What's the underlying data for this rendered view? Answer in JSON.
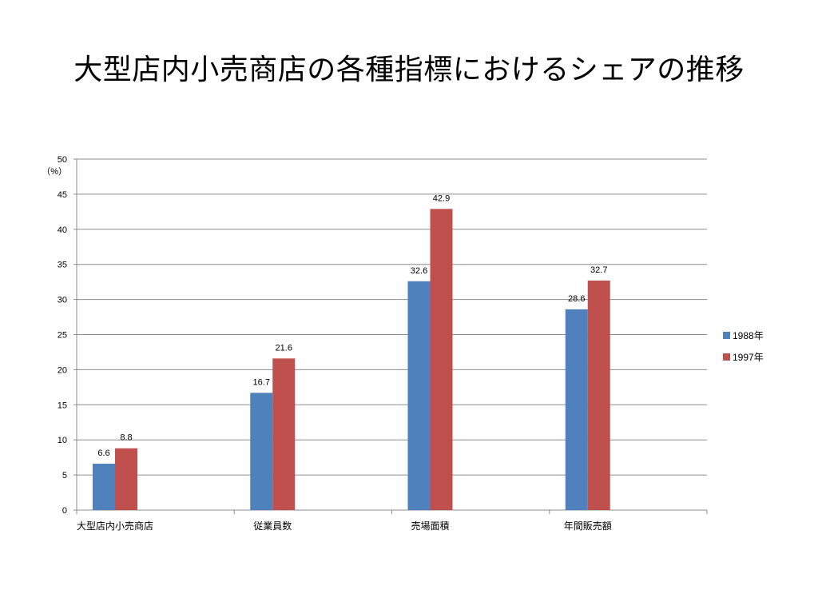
{
  "slide": {
    "title": "大型店内小売商店の各種指標におけるシェアの推移"
  },
  "chart_data": {
    "type": "bar",
    "title": "",
    "ylabel": "",
    "y_unit_label": "（%）",
    "ylim": [
      0,
      50
    ],
    "yticks": [
      0,
      5,
      10,
      15,
      20,
      25,
      30,
      35,
      40,
      45,
      50
    ],
    "grid": true,
    "legend_position": "right",
    "categories": [
      "大型店内小売商店",
      "従業員数",
      "売場面積",
      "年間販売額"
    ],
    "series": [
      {
        "name": "1988年",
        "color": "#4f81bd",
        "values": [
          6.6,
          16.7,
          32.6,
          28.6
        ]
      },
      {
        "name": "1997年",
        "color": "#c0504d",
        "values": [
          8.8,
          21.6,
          42.9,
          32.7
        ]
      }
    ]
  }
}
